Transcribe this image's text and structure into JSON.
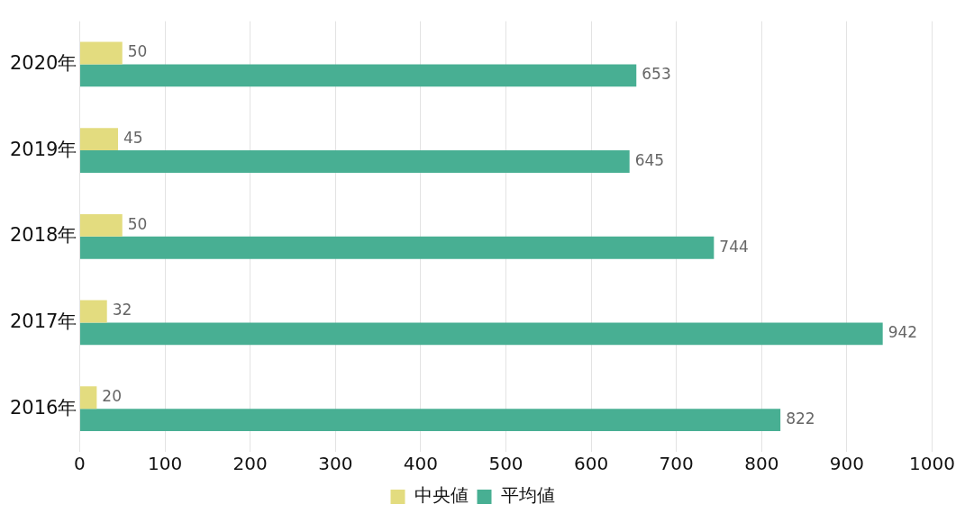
{
  "chart_data": {
    "type": "bar",
    "orientation": "horizontal",
    "categories": [
      "2020年",
      "2019年",
      "2018年",
      "2017年",
      "2016年"
    ],
    "series": [
      {
        "name": "中央値",
        "color": "#e3dc7f",
        "values": [
          50,
          45,
          50,
          32,
          20
        ]
      },
      {
        "name": "平均値",
        "color": "#48af93",
        "values": [
          653,
          645,
          744,
          942,
          822
        ]
      }
    ],
    "xlim": [
      0,
      1000
    ],
    "xticks": [
      0,
      100,
      200,
      300,
      400,
      500,
      600,
      700,
      800,
      900,
      1000
    ],
    "grid": "x",
    "legend": "bottom",
    "data_labels": true
  }
}
